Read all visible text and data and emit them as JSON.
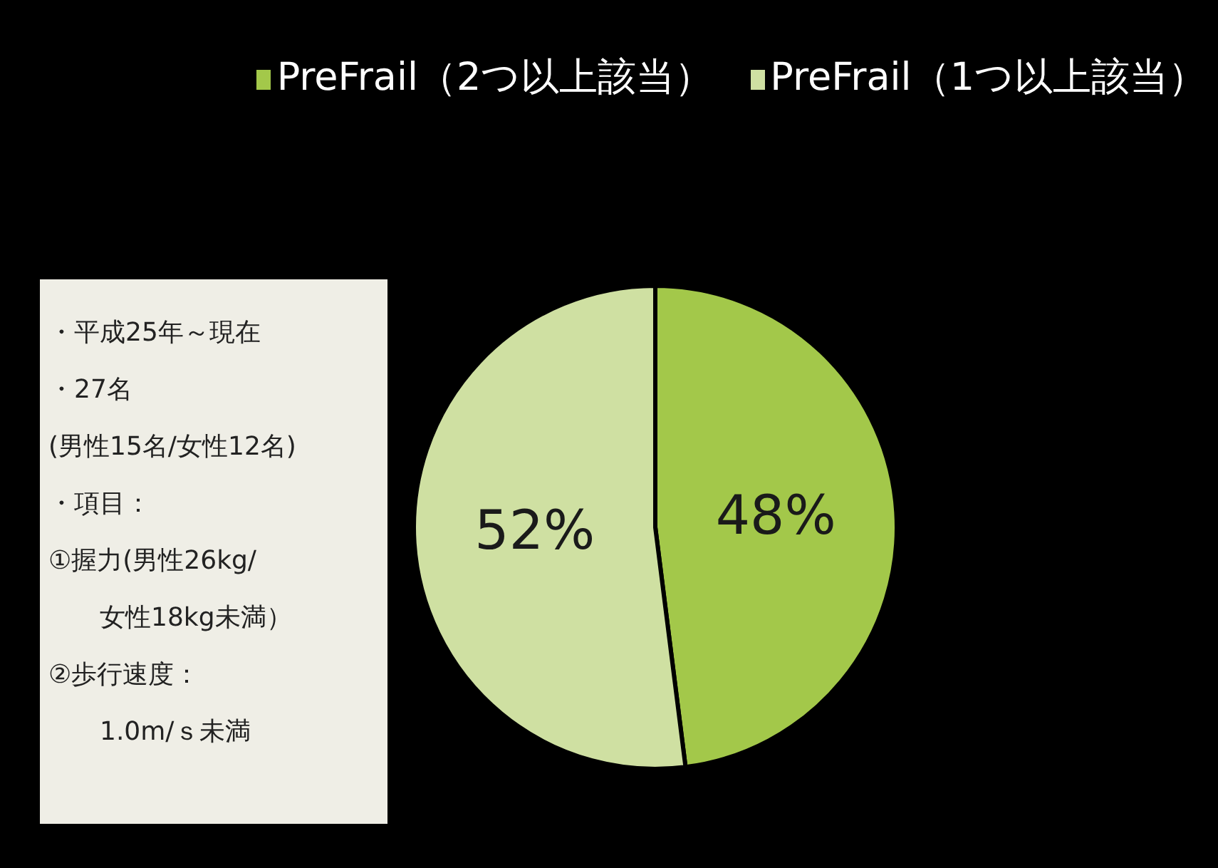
{
  "chart_data": {
    "type": "pie",
    "categories": [
      "PreFrail（2つ以上該当）",
      "PreFrail（1つ以上該当）"
    ],
    "values": [
      48,
      52
    ],
    "colors": [
      "#a3c84a",
      "#cfe0a2"
    ],
    "value_labels": [
      "48%",
      "52%"
    ],
    "legend": "top",
    "annotations": [
      "・平成25年～現在",
      "・27名",
      "(男性15名/女性12名)",
      "・項目：",
      "①握力(男性26kg/",
      "　　女性18kg未満）",
      "②歩行速度：",
      "　　1.0m/ｓ未満"
    ]
  }
}
